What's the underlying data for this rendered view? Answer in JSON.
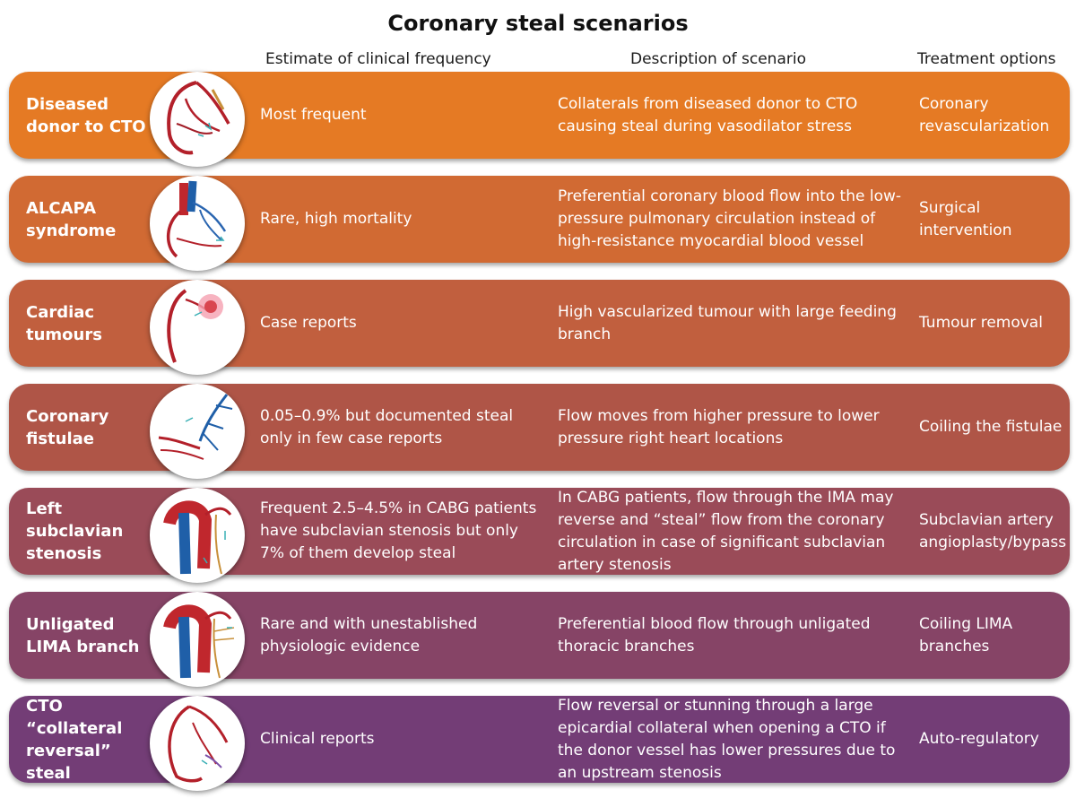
{
  "title": "Coronary steal scenarios",
  "headers": {
    "frequency": "Estimate of clinical frequency",
    "description": "Description of scenario",
    "treatment": "Treatment options"
  },
  "rows": [
    {
      "name": "Diseased donor to CTO",
      "frequency": "Most frequent",
      "description": "Collaterals from diseased donor to CTO causing steal during vasodilator stress",
      "treatment": "Coronary revascularization",
      "color": "#e57a24"
    },
    {
      "name": "ALCAPA syndrome",
      "frequency": "Rare, high mortality",
      "description": "Preferential coronary blood flow into the low-pressure pulmonary circulation instead of high-resistance myocardial blood vessel",
      "treatment": "Surgical intervention",
      "color": "#d16a33"
    },
    {
      "name": "Cardiac tumours",
      "frequency": "Case reports",
      "description": "High vascularized tumour with large feeding branch",
      "treatment": "Tumour removal",
      "color": "#c15f3e"
    },
    {
      "name": "Coronary fistulae",
      "frequency": "0.05–0.9% but documented steal only in few case reports",
      "description": "Flow moves from higher pressure to lower pressure right heart locations",
      "treatment": "Coiling the fistulae",
      "color": "#af5547"
    },
    {
      "name": "Left subclavian stenosis",
      "frequency": "Frequent 2.5–4.5% in CABG patients have subclavian stenosis but only 7% of them develop steal",
      "description": "In CABG patients, flow through the IMA may reverse and “steal” flow from the coronary circulation in case of significant subclavian artery stenosis",
      "treatment": "Subclavian artery angioplasty/bypass",
      "color": "#9a4b58"
    },
    {
      "name": "Unligated LIMA branch",
      "frequency": "Rare and with unestablished physiologic evidence",
      "description": "Preferential blood flow through unligated thoracic branches",
      "treatment": "Coiling LIMA branches",
      "color": "#864466"
    },
    {
      "name": "CTO “collateral reversal” steal",
      "frequency": "Clinical reports",
      "description": "Flow reversal or stunning through a large epicardial collateral when opening a CTO if the donor vessel has lower pressures due to an upstream stenosis",
      "treatment": "Auto-regulatory",
      "color": "#733d76"
    }
  ]
}
